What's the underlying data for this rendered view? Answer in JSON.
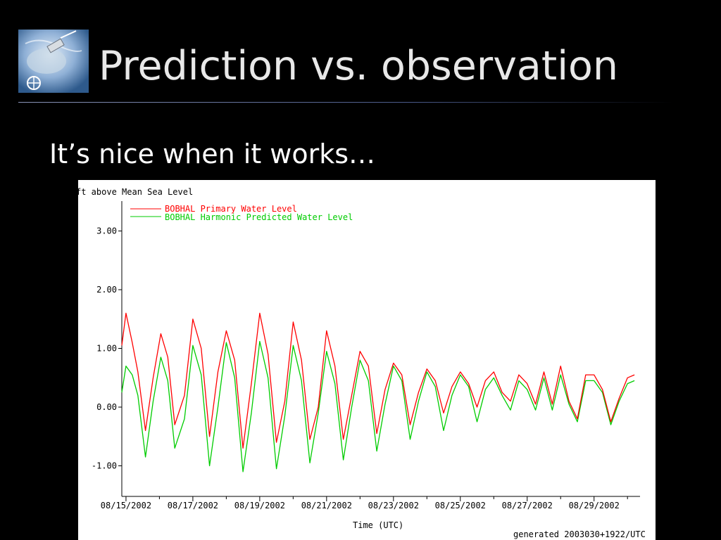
{
  "slide": {
    "title": "Prediction vs. observation",
    "subtitle": "It’s nice when it works…",
    "logo_icon": "globe-satellite-icon"
  },
  "chart_data": {
    "type": "line",
    "ylabel": "ft above Mean Sea Level",
    "xlabel": "Time (UTC)",
    "footer": "generated 2003030+1922/UTC",
    "ylim": [
      -1.4,
      3.7
    ],
    "yticks": [
      -1,
      0,
      1,
      2,
      3
    ],
    "ytick_labels": [
      "-1.00",
      "0.00",
      "1.00",
      "2.00",
      "3.00"
    ],
    "xlim": [
      "2002-08-14T21:00",
      "2002-08-30T09:00"
    ],
    "xticks": [
      "2002-08-15",
      "2002-08-17",
      "2002-08-19",
      "2002-08-21",
      "2002-08-23",
      "2002-08-25",
      "2002-08-27",
      "2002-08-29"
    ],
    "xtick_labels": [
      "08/15/2002",
      "08/17/2002",
      "08/19/2002",
      "08/21/2002",
      "08/23/2002",
      "08/25/2002",
      "08/27/2002",
      "08/29/2002"
    ],
    "grid": false,
    "legend_position": "top-left",
    "series": [
      {
        "name": "BOBHAL Primary Water Level",
        "color": "#ff0000",
        "x": [
          "2002-08-14T21:00",
          "2002-08-15T00:00",
          "2002-08-15T04:30",
          "2002-08-15T08:30",
          "2002-08-15T14:00",
          "2002-08-15T19:30",
          "2002-08-16T01:00",
          "2002-08-16T06:00",
          "2002-08-16T11:00",
          "2002-08-16T18:00",
          "2002-08-17T00:00",
          "2002-08-17T06:00",
          "2002-08-17T12:00",
          "2002-08-17T18:00",
          "2002-08-18T00:00",
          "2002-08-18T06:00",
          "2002-08-18T12:00",
          "2002-08-18T18:00",
          "2002-08-19T00:00",
          "2002-08-19T06:00",
          "2002-08-19T12:00",
          "2002-08-19T18:00",
          "2002-08-20T00:00",
          "2002-08-20T06:00",
          "2002-08-20T12:00",
          "2002-08-20T18:00",
          "2002-08-21T00:00",
          "2002-08-21T06:00",
          "2002-08-21T12:00",
          "2002-08-21T18:00",
          "2002-08-22T00:00",
          "2002-08-22T06:00",
          "2002-08-22T12:00",
          "2002-08-22T18:00",
          "2002-08-23T00:00",
          "2002-08-23T06:00",
          "2002-08-23T12:00",
          "2002-08-23T18:00",
          "2002-08-24T00:00",
          "2002-08-24T06:00",
          "2002-08-24T12:00",
          "2002-08-24T18:00",
          "2002-08-25T00:00",
          "2002-08-25T06:00",
          "2002-08-25T12:00",
          "2002-08-25T18:00",
          "2002-08-26T00:00",
          "2002-08-26T06:00",
          "2002-08-26T12:00",
          "2002-08-26T18:00",
          "2002-08-27T00:00",
          "2002-08-27T06:00",
          "2002-08-27T12:00",
          "2002-08-27T18:00",
          "2002-08-28T00:00",
          "2002-08-28T06:00",
          "2002-08-28T12:00",
          "2002-08-28T18:00",
          "2002-08-29T00:00",
          "2002-08-29T06:00",
          "2002-08-29T12:00",
          "2002-08-29T18:00",
          "2002-08-30T00:00",
          "2002-08-30T05:00"
        ],
        "y": [
          1.05,
          1.6,
          1.1,
          0.6,
          -0.4,
          0.5,
          1.25,
          0.85,
          -0.3,
          0.2,
          1.5,
          1.0,
          -0.5,
          0.6,
          1.3,
          0.8,
          -0.7,
          0.4,
          1.6,
          0.9,
          -0.6,
          0.1,
          1.45,
          0.8,
          -0.55,
          0.0,
          1.3,
          0.7,
          -0.55,
          0.2,
          0.95,
          0.7,
          -0.45,
          0.3,
          0.75,
          0.55,
          -0.3,
          0.25,
          0.65,
          0.45,
          -0.1,
          0.35,
          0.6,
          0.4,
          0.0,
          0.45,
          0.6,
          0.25,
          0.1,
          0.55,
          0.4,
          0.05,
          0.6,
          0.05,
          0.7,
          0.1,
          -0.2,
          0.55,
          0.55,
          0.3,
          -0.25,
          0.15,
          0.5,
          0.55
        ]
      },
      {
        "name": "BOBHAL Harmonic Predicted Water Level",
        "color": "#00cc00",
        "x": [
          "2002-08-14T21:00",
          "2002-08-15T00:00",
          "2002-08-15T04:30",
          "2002-08-15T08:30",
          "2002-08-15T14:00",
          "2002-08-15T19:30",
          "2002-08-16T01:00",
          "2002-08-16T06:00",
          "2002-08-16T11:00",
          "2002-08-16T18:00",
          "2002-08-17T00:00",
          "2002-08-17T06:00",
          "2002-08-17T12:00",
          "2002-08-17T18:00",
          "2002-08-18T00:00",
          "2002-08-18T06:00",
          "2002-08-18T12:00",
          "2002-08-18T18:00",
          "2002-08-19T00:00",
          "2002-08-19T06:00",
          "2002-08-19T12:00",
          "2002-08-19T18:00",
          "2002-08-20T00:00",
          "2002-08-20T06:00",
          "2002-08-20T12:00",
          "2002-08-20T18:00",
          "2002-08-21T00:00",
          "2002-08-21T06:00",
          "2002-08-21T12:00",
          "2002-08-21T18:00",
          "2002-08-22T00:00",
          "2002-08-22T06:00",
          "2002-08-22T12:00",
          "2002-08-22T18:00",
          "2002-08-23T00:00",
          "2002-08-23T06:00",
          "2002-08-23T12:00",
          "2002-08-23T18:00",
          "2002-08-24T00:00",
          "2002-08-24T06:00",
          "2002-08-24T12:00",
          "2002-08-24T18:00",
          "2002-08-25T00:00",
          "2002-08-25T06:00",
          "2002-08-25T12:00",
          "2002-08-25T18:00",
          "2002-08-26T00:00",
          "2002-08-26T06:00",
          "2002-08-26T12:00",
          "2002-08-26T18:00",
          "2002-08-27T00:00",
          "2002-08-27T06:00",
          "2002-08-27T12:00",
          "2002-08-27T18:00",
          "2002-08-28T00:00",
          "2002-08-28T06:00",
          "2002-08-28T12:00",
          "2002-08-28T18:00",
          "2002-08-29T00:00",
          "2002-08-29T06:00",
          "2002-08-29T12:00",
          "2002-08-29T18:00",
          "2002-08-30T00:00",
          "2002-08-30T05:00"
        ],
        "y": [
          0.25,
          0.7,
          0.55,
          0.2,
          -0.85,
          0.1,
          0.85,
          0.45,
          -0.7,
          -0.2,
          1.05,
          0.55,
          -1.0,
          0.0,
          1.1,
          0.5,
          -1.1,
          -0.1,
          1.12,
          0.5,
          -1.05,
          -0.15,
          1.05,
          0.45,
          -0.95,
          -0.1,
          0.95,
          0.4,
          -0.9,
          0.0,
          0.8,
          0.45,
          -0.75,
          0.05,
          0.7,
          0.45,
          -0.55,
          0.1,
          0.6,
          0.35,
          -0.4,
          0.2,
          0.55,
          0.35,
          -0.25,
          0.3,
          0.5,
          0.2,
          -0.05,
          0.45,
          0.3,
          -0.05,
          0.5,
          -0.05,
          0.55,
          0.05,
          -0.25,
          0.45,
          0.45,
          0.25,
          -0.3,
          0.1,
          0.4,
          0.45
        ]
      }
    ]
  }
}
